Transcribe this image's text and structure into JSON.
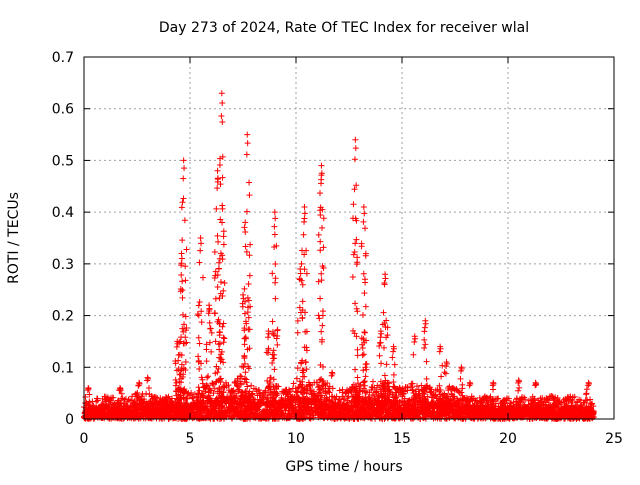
{
  "chart_data": {
    "type": "scatter",
    "title": "Day 273 of 2024, Rate Of TEC Index for receiver wlal",
    "xlabel": "GPS time / hours",
    "ylabel": "ROTI / TECUs",
    "xlim": [
      0,
      25
    ],
    "ylim": [
      0,
      0.7
    ],
    "xticks": [
      0,
      5,
      10,
      15,
      20,
      25
    ],
    "xtick_labels": [
      "0",
      "5",
      "10",
      "15",
      "20",
      "25"
    ],
    "yticks": [
      0,
      0.1,
      0.2,
      0.3,
      0.4,
      0.5,
      0.6,
      0.7
    ],
    "ytick_labels": [
      "0",
      "0.1",
      "0.2",
      "0.3",
      "0.4",
      "0.5",
      "0.6",
      "0.7"
    ],
    "grid": true,
    "marker": "plus",
    "series": [
      {
        "name": "ROTI",
        "color": "#ff0000",
        "baseline": [
          [
            0.0,
            0.03
          ],
          [
            0.5,
            0.04
          ],
          [
            1.0,
            0.045
          ],
          [
            1.5,
            0.04
          ],
          [
            2.0,
            0.04
          ],
          [
            2.5,
            0.05
          ],
          [
            3.0,
            0.05
          ],
          [
            3.5,
            0.04
          ],
          [
            4.0,
            0.045
          ],
          [
            4.5,
            0.06
          ],
          [
            5.0,
            0.05
          ],
          [
            5.5,
            0.06
          ],
          [
            6.0,
            0.07
          ],
          [
            6.5,
            0.08
          ],
          [
            7.0,
            0.07
          ],
          [
            7.5,
            0.09
          ],
          [
            8.0,
            0.06
          ],
          [
            8.5,
            0.06
          ],
          [
            9.0,
            0.07
          ],
          [
            9.5,
            0.06
          ],
          [
            10.0,
            0.08
          ],
          [
            10.5,
            0.07
          ],
          [
            11.0,
            0.08
          ],
          [
            11.5,
            0.07
          ],
          [
            12.0,
            0.06
          ],
          [
            12.5,
            0.06
          ],
          [
            13.0,
            0.08
          ],
          [
            13.5,
            0.07
          ],
          [
            14.0,
            0.08
          ],
          [
            14.5,
            0.07
          ],
          [
            15.0,
            0.06
          ],
          [
            15.5,
            0.07
          ],
          [
            16.0,
            0.07
          ],
          [
            16.5,
            0.06
          ],
          [
            17.0,
            0.06
          ],
          [
            17.5,
            0.06
          ],
          [
            18.0,
            0.05
          ],
          [
            18.5,
            0.04
          ],
          [
            19.0,
            0.045
          ],
          [
            19.5,
            0.04
          ],
          [
            20.0,
            0.04
          ],
          [
            20.5,
            0.045
          ],
          [
            21.0,
            0.04
          ],
          [
            21.5,
            0.04
          ],
          [
            22.0,
            0.045
          ],
          [
            22.5,
            0.04
          ],
          [
            23.0,
            0.045
          ],
          [
            23.5,
            0.04
          ],
          [
            24.0,
            0.03
          ]
        ],
        "spikes": [
          {
            "x": 0.2,
            "peak": 0.06
          },
          {
            "x": 1.7,
            "peak": 0.06
          },
          {
            "x": 2.6,
            "peak": 0.07
          },
          {
            "x": 3.0,
            "peak": 0.08
          },
          {
            "x": 4.4,
            "peak": 0.15
          },
          {
            "x": 4.6,
            "peak": 0.32
          },
          {
            "x": 4.7,
            "peak": 0.5
          },
          {
            "x": 5.5,
            "peak": 0.35
          },
          {
            "x": 5.9,
            "peak": 0.22
          },
          {
            "x": 6.3,
            "peak": 0.48
          },
          {
            "x": 6.5,
            "peak": 0.63
          },
          {
            "x": 7.5,
            "peak": 0.24
          },
          {
            "x": 7.7,
            "peak": 0.55
          },
          {
            "x": 8.7,
            "peak": 0.17
          },
          {
            "x": 9.0,
            "peak": 0.4
          },
          {
            "x": 10.2,
            "peak": 0.29
          },
          {
            "x": 10.4,
            "peak": 0.41
          },
          {
            "x": 11.2,
            "peak": 0.49
          },
          {
            "x": 11.7,
            "peak": 0.09
          },
          {
            "x": 12.8,
            "peak": 0.54
          },
          {
            "x": 13.2,
            "peak": 0.41
          },
          {
            "x": 14.0,
            "peak": 0.17
          },
          {
            "x": 14.2,
            "peak": 0.28
          },
          {
            "x": 14.6,
            "peak": 0.14
          },
          {
            "x": 15.6,
            "peak": 0.16
          },
          {
            "x": 16.1,
            "peak": 0.19
          },
          {
            "x": 16.8,
            "peak": 0.14
          },
          {
            "x": 17.1,
            "peak": 0.11
          },
          {
            "x": 17.8,
            "peak": 0.1
          },
          {
            "x": 18.2,
            "peak": 0.07
          },
          {
            "x": 19.3,
            "peak": 0.07
          },
          {
            "x": 20.5,
            "peak": 0.075
          },
          {
            "x": 21.3,
            "peak": 0.07
          },
          {
            "x": 23.8,
            "peak": 0.07
          }
        ]
      }
    ]
  }
}
